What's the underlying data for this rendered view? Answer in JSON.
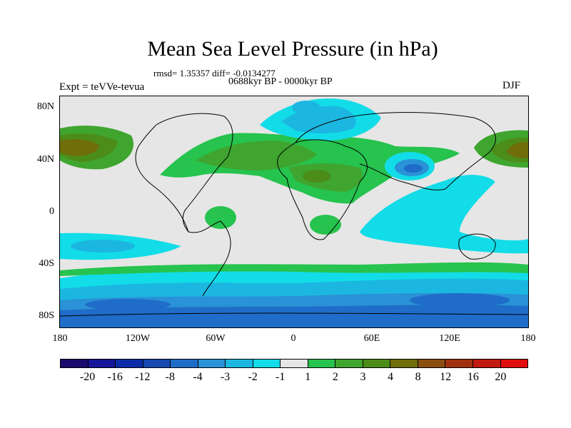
{
  "title": "Mean Sea Level Pressure (in hPa)",
  "stats": "rmsd= 1.35357 diff= -0.0134277",
  "period": "0688kyr BP - 0000kyr BP",
  "experiment": "Expt = teVVe-tevua",
  "season": "DJF",
  "lat_labels": [
    "80N",
    "40N",
    "0",
    "40S",
    "80S"
  ],
  "lon_labels": [
    "180",
    "120W",
    "60W",
    "0",
    "60E",
    "120E",
    "180"
  ],
  "colorbar": {
    "labels": [
      "-20",
      "-16",
      "-12",
      "-8",
      "-4",
      "-3",
      "-2",
      "-1",
      "1",
      "2",
      "3",
      "4",
      "8",
      "12",
      "16",
      "20"
    ],
    "colors": [
      "#1a0a6e",
      "#16169a",
      "#0d2da8",
      "#1548b0",
      "#1f6dc8",
      "#2a92d6",
      "#1cb7e0",
      "#12dce8",
      "#e6e6e6",
      "#26c34e",
      "#3fa52f",
      "#4c8d1a",
      "#6f6e0a",
      "#8a4e0e",
      "#a0300e",
      "#c21a10",
      "#e00d0d"
    ]
  },
  "map_palette": {
    "neutral": "#e6e6e6",
    "neg1": "#12dce8",
    "neg2": "#1cb7e0",
    "neg3": "#2a92d6",
    "neg4": "#1f6dc8",
    "pos1": "#26c34e",
    "pos2": "#3fa52f",
    "pos4": "#6f6e0a",
    "pos8": "#8a4e0e"
  }
}
